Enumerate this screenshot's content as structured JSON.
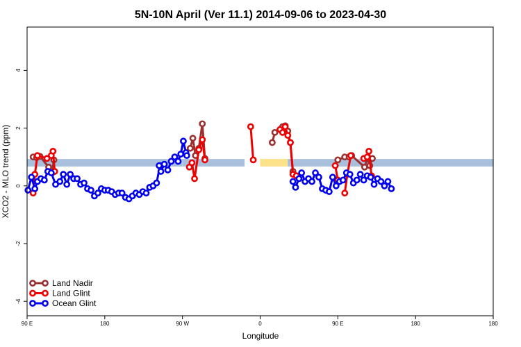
{
  "chart_data": {
    "type": "line",
    "title": "5N-10N April (Ver 11.1)   2014-09-06 to 2023-04-30",
    "xlabel": "Longitude",
    "ylabel": "XCO2 - MLO trend (ppm)",
    "xlim": [
      -90,
      180
    ],
    "ylim": [
      -4.5,
      5.5
    ],
    "x_ticks": [
      {
        "value": -90,
        "label": "90 E"
      },
      {
        "value": -45,
        "label": "180"
      },
      {
        "value": 0,
        "label": "90 W"
      },
      {
        "value": 45,
        "label": "0"
      },
      {
        "value": 90,
        "label": "90 E"
      },
      {
        "value": 135,
        "label": "180"
      }
    ],
    "y_ticks": [
      {
        "value": -4,
        "label": "-4"
      },
      {
        "value": -2,
        "label": "-2"
      },
      {
        "value": 0,
        "label": "0"
      },
      {
        "value": 2,
        "label": "2"
      },
      {
        "value": 4,
        "label": "4"
      }
    ],
    "grid": false,
    "legend_position": "bottom-left",
    "band": {
      "y_center": 0.8,
      "half_width": 0.13,
      "segments": [
        {
          "x": [
            -90,
            0
          ],
          "color": "#a8c0dc"
        },
        {
          "x": [
            0,
            36
          ],
          "color": "#a8c0dc",
          "note_color": "#fde28a"
        },
        {
          "x": [
            45,
            61
          ],
          "color": "#fde28a"
        },
        {
          "x": [
            61,
            180
          ],
          "color": "#a8c0dc"
        }
      ]
    },
    "series": [
      {
        "name": "Land Nadir",
        "color": "#9b3030",
        "segments": [
          [
            [
              -86.5,
              1.0
            ],
            [
              -84.5,
              0.98
            ],
            [
              -82.5,
              1.02
            ],
            [
              -77.5,
              0.65
            ],
            [
              -75.5,
              0.45
            ],
            [
              -74.5,
              0.9
            ]
          ],
          [
            [
              4.5,
              1.3
            ],
            [
              6,
              1.65
            ],
            [
              7.5,
              1.05
            ],
            [
              9.5,
              1.3
            ],
            [
              11.5,
              2.15
            ],
            [
              13,
              0.95
            ]
          ],
          [
            [
              52,
              1.5
            ],
            [
              53.5,
              1.85
            ],
            [
              56.5,
              1.95
            ],
            [
              58,
              2.05
            ],
            [
              59.5,
              2.08
            ],
            [
              61,
              1.9
            ],
            [
              62.5,
              1.5
            ],
            [
              64,
              0.5
            ],
            [
              66,
              0.35
            ]
          ],
          [
            [
              90,
              0.9
            ],
            [
              94,
              1.0
            ],
            [
              96.5,
              1.0
            ],
            [
              98,
              1.05
            ],
            [
              105.5,
              0.65
            ],
            [
              107,
              0.95
            ],
            [
              108.5,
              0.7
            ],
            [
              110,
              0.95
            ]
          ]
        ]
      },
      {
        "name": "Land Glint",
        "color": "#ee0000",
        "segments": [
          [
            [
              -86.5,
              -0.25
            ],
            [
              -85.5,
              0.4
            ],
            [
              -84,
              1.05
            ],
            [
              -78.5,
              0.95
            ],
            [
              -76,
              1.05
            ],
            [
              -75,
              1.2
            ],
            [
              -74,
              0.5
            ]
          ],
          [
            [
              4,
              0.65
            ],
            [
              5.5,
              0.8
            ],
            [
              7,
              0.25
            ],
            [
              9.5,
              1.25
            ],
            [
              11.5,
              1.6
            ],
            [
              13,
              0.9
            ]
          ],
          [
            [
              39.5,
              2.05
            ],
            [
              41,
              0.9
            ]
          ],
          [
            [
              56.5,
              1.95
            ],
            [
              58,
              1.85
            ],
            [
              59.5,
              2.05
            ],
            [
              61,
              1.75
            ],
            [
              62.5,
              1.5
            ],
            [
              64,
              0.4
            ],
            [
              66,
              0.35
            ]
          ],
          [
            [
              88.5,
              0.7
            ],
            [
              90,
              0.2
            ]
          ],
          [
            [
              94,
              -0.25
            ],
            [
              95.5,
              0.4
            ],
            [
              97.5,
              1.05
            ]
          ],
          [
            [
              105,
              0.95
            ],
            [
              107,
              1.0
            ],
            [
              108,
              1.2
            ],
            [
              109.5,
              0.35
            ]
          ]
        ]
      },
      {
        "name": "Ocean Glint",
        "color": "#0000ee",
        "segments": [
          [
            [
              -89.5,
              -0.15
            ],
            [
              -87.5,
              0.3
            ],
            [
              -85.5,
              -0.1
            ],
            [
              -84,
              0.15
            ],
            [
              -82,
              0.25
            ],
            [
              -80,
              0.2
            ],
            [
              -78,
              0.5
            ],
            [
              -76,
              0.45
            ],
            [
              -73.5,
              0.05
            ],
            [
              -71,
              0.15
            ],
            [
              -69,
              0.4
            ],
            [
              -67,
              0.05
            ],
            [
              -65,
              0.4
            ],
            [
              -63,
              0.25
            ],
            [
              -61,
              0.25
            ],
            [
              -59,
              0.05
            ],
            [
              -57,
              0.1
            ],
            [
              -55,
              -0.1
            ],
            [
              -53,
              -0.15
            ],
            [
              -51,
              -0.35
            ],
            [
              -49,
              -0.25
            ],
            [
              -47,
              -0.1
            ],
            [
              -45,
              -0.15
            ],
            [
              -43,
              -0.15
            ],
            [
              -41,
              -0.2
            ],
            [
              -39,
              -0.3
            ],
            [
              -37,
              -0.25
            ],
            [
              -35,
              -0.25
            ],
            [
              -33,
              -0.4
            ],
            [
              -31,
              -0.45
            ],
            [
              -29,
              -0.35
            ],
            [
              -27,
              -0.25
            ],
            [
              -25,
              -0.3
            ],
            [
              -23,
              -0.2
            ],
            [
              -21,
              -0.25
            ],
            [
              -19,
              -0.05
            ],
            [
              -17,
              0.0
            ],
            [
              -15,
              0.1
            ],
            [
              -13,
              0.7
            ]
          ],
          [
            [
              -13.5,
              0.7
            ],
            [
              -12.5,
              0.5
            ],
            [
              -10.5,
              0.75
            ],
            [
              -8.5,
              0.55
            ],
            [
              -6.5,
              0.85
            ],
            [
              -4.5,
              1.0
            ],
            [
              -2.5,
              0.85
            ],
            [
              -1,
              1.1
            ],
            [
              0.5,
              1.55
            ],
            [
              2,
              1.15
            ]
          ],
          [
            [
              2.5,
              1.05
            ]
          ],
          [
            [
              64,
              0.15
            ],
            [
              65.5,
              -0.05
            ],
            [
              67.5,
              0.25
            ],
            [
              69,
              0.45
            ],
            [
              71,
              0.15
            ],
            [
              73,
              0.25
            ],
            [
              75,
              0.15
            ],
            [
              77,
              0.45
            ],
            [
              79,
              0.3
            ],
            [
              81,
              -0.1
            ],
            [
              83,
              -0.15
            ],
            [
              85,
              -0.2
            ],
            [
              87,
              0.3
            ],
            [
              89,
              0.0
            ],
            [
              91,
              0.15
            ],
            [
              93,
              0.2
            ],
            [
              95,
              0.45
            ],
            [
              97,
              0.4
            ],
            [
              99,
              0.1
            ],
            [
              101,
              0.2
            ],
            [
              103,
              0.4
            ],
            [
              105,
              0.2
            ],
            [
              107,
              0.35
            ],
            [
              109,
              0.3
            ],
            [
              111,
              0.05
            ],
            [
              113,
              0.25
            ],
            [
              115,
              0.15
            ],
            [
              117,
              0.0
            ],
            [
              119,
              0.15
            ],
            [
              121,
              -0.1
            ]
          ]
        ]
      }
    ]
  }
}
